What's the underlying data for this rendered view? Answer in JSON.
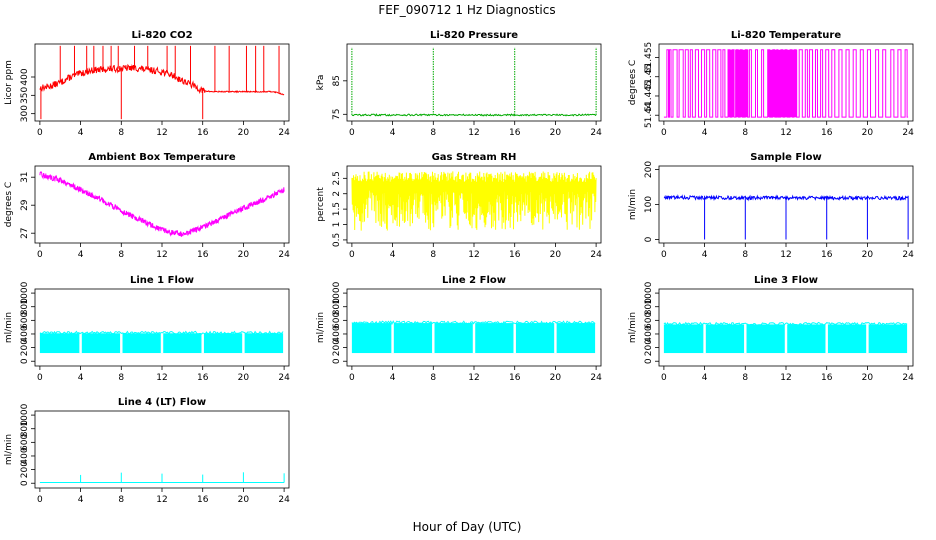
{
  "figure": {
    "title": "FEF_090712  1 Hz Diagnostics",
    "xlabel": "Hour of Day (UTC)"
  },
  "chart_data": [
    {
      "type": "line",
      "title": "Li-820 CO2",
      "xlabel": "",
      "ylabel": "Licor ppm",
      "color": "#ff0000",
      "xlim": [
        0,
        24
      ],
      "ylim": [
        280,
        490
      ],
      "xticks": [
        0,
        4,
        8,
        12,
        16,
        20,
        24
      ],
      "yticks": [
        300,
        350,
        400
      ],
      "x": [
        0,
        0.5,
        1,
        2,
        3,
        4,
        5,
        6,
        7,
        8,
        9,
        10,
        11,
        12,
        13,
        14,
        15,
        16,
        17,
        18,
        19,
        20,
        21,
        22,
        23,
        24
      ],
      "y": [
        370,
        372,
        375,
        385,
        400,
        410,
        418,
        420,
        422,
        423,
        425,
        422,
        418,
        415,
        405,
        390,
        378,
        362,
        360,
        360,
        360,
        360,
        360,
        360,
        360,
        352
      ],
      "spikes_up": [
        2,
        3.4,
        4.6,
        5.3,
        6.2,
        7.0,
        7.7,
        9.3,
        10.6,
        12.5,
        13.3,
        14.8,
        17.2,
        18.6,
        20.3,
        21.2,
        22.0,
        23.5
      ],
      "spikes_down": [
        0.1,
        8.0,
        16.0
      ]
    },
    {
      "type": "line",
      "title": "Li-820 Pressure",
      "xlabel": "",
      "ylabel": "kPa",
      "color": "#00aa00",
      "xlim": [
        0,
        24
      ],
      "ylim": [
        73,
        96
      ],
      "xticks": [
        0,
        4,
        8,
        12,
        16,
        20,
        24
      ],
      "yticks": [
        75,
        85
      ],
      "x": [
        0,
        24
      ],
      "y": [
        74.8,
        74.8
      ],
      "spikes_up": [
        0,
        8,
        16,
        24
      ]
    },
    {
      "type": "line",
      "title": "Li-820 Temperature",
      "xlabel": "",
      "ylabel": "degrees C",
      "color": "#ff00ff",
      "xlim": [
        0,
        24
      ],
      "ylim": [
        51.4385,
        51.4585
      ],
      "xticks": [
        0,
        4,
        8,
        12,
        16,
        20,
        24
      ],
      "yticks": [
        51.44,
        51.445,
        51.45,
        51.455
      ],
      "levels": [
        51.4395,
        51.457
      ],
      "switch_times": [
        0.3,
        0.45,
        0.55,
        0.7,
        0.9,
        1.3,
        1.5,
        1.9,
        2.1,
        2.4,
        2.6,
        2.8,
        3.1,
        3.4,
        3.7,
        4.0,
        4.2,
        4.5,
        4.8,
        5.1,
        5.3,
        5.6,
        5.8,
        6.0,
        6.3,
        6.5,
        6.7,
        6.9,
        7.1,
        7.3,
        7.5,
        7.7,
        8.0,
        8.2,
        8.4,
        8.6,
        9.0,
        9.2,
        9.6,
        9.8,
        10.2,
        10.4,
        10.7,
        10.9,
        11.1,
        11.2,
        11.5,
        11.7,
        11.9,
        12.1,
        12.4,
        12.6,
        12.8,
        13.0,
        13.3,
        13.6,
        13.9,
        14.1,
        14.3,
        14.6,
        14.9,
        15.1,
        15.4,
        15.6,
        15.9,
        16.2,
        16.5,
        16.8,
        17.2,
        17.5,
        17.9,
        18.2,
        18.6,
        18.9,
        19.3,
        19.6,
        20.0,
        20.3,
        20.8,
        21.1,
        21.5,
        21.8,
        22.3,
        22.6,
        23.0,
        23.3,
        23.7,
        23.9
      ]
    },
    {
      "type": "line",
      "title": "Ambient Box Temperature",
      "xlabel": "",
      "ylabel": "degrees C",
      "color": "#ff00ff",
      "xlim": [
        0,
        24
      ],
      "ylim": [
        26.3,
        31.8
      ],
      "xticks": [
        0,
        4,
        8,
        12,
        16,
        20,
        24
      ],
      "yticks": [
        27,
        29,
        31
      ],
      "x": [
        0,
        2,
        4,
        6,
        8,
        10,
        12,
        14,
        16,
        18,
        20,
        22,
        24
      ],
      "y": [
        31.2,
        30.8,
        30.1,
        29.4,
        28.6,
        27.9,
        27.2,
        26.9,
        27.4,
        28.1,
        28.8,
        29.4,
        30.1
      ],
      "noise_band": 0.4
    },
    {
      "type": "line",
      "title": "Gas Stream RH",
      "xlabel": "",
      "ylabel": "percent",
      "color": "#ffff00",
      "xlim": [
        0,
        24
      ],
      "ylim": [
        0.4,
        2.9
      ],
      "xticks": [
        0,
        4,
        8,
        12,
        16,
        20,
        24
      ],
      "yticks": [
        0.5,
        1.0,
        1.5,
        2.0,
        2.5
      ],
      "upper": 2.55,
      "lower": 0.8
    },
    {
      "type": "line",
      "title": "Sample Flow",
      "xlabel": "",
      "ylabel": "ml/min",
      "color": "#0000ff",
      "xlim": [
        0,
        24
      ],
      "ylim": [
        -10,
        210
      ],
      "xticks": [
        0,
        4,
        8,
        12,
        16,
        20,
        24
      ],
      "yticks": [
        0,
        100,
        200
      ],
      "x": [
        0,
        24
      ],
      "y": [
        120,
        118
      ],
      "spikes_down": [
        4,
        8,
        12,
        16,
        20,
        24
      ]
    },
    {
      "type": "line",
      "title": "Line 1 Flow",
      "xlabel": "",
      "ylabel": "ml/min",
      "color": "#00ffff",
      "xlim": [
        0,
        24
      ],
      "ylim": [
        -70,
        1060
      ],
      "xticks": [
        0,
        4,
        8,
        12,
        16,
        20,
        24
      ],
      "yticks": [
        0,
        200,
        400,
        600,
        800,
        1000
      ],
      "upper": 410,
      "lower": 120,
      "gaps": [
        4,
        8,
        12,
        16,
        20
      ]
    },
    {
      "type": "line",
      "title": "Line 2 Flow",
      "xlabel": "",
      "ylabel": "ml/min",
      "color": "#00ffff",
      "xlim": [
        0,
        24
      ],
      "ylim": [
        -70,
        1060
      ],
      "xticks": [
        0,
        4,
        8,
        12,
        16,
        20,
        24
      ],
      "yticks": [
        0,
        200,
        400,
        600,
        800,
        1000
      ],
      "upper": 560,
      "lower": 120,
      "gaps": [
        4,
        8,
        12,
        16,
        20
      ]
    },
    {
      "type": "line",
      "title": "Line 3 Flow",
      "xlabel": "",
      "ylabel": "ml/min",
      "color": "#00ffff",
      "xlim": [
        0,
        24
      ],
      "ylim": [
        -70,
        1060
      ],
      "xticks": [
        0,
        4,
        8,
        12,
        16,
        20,
        24
      ],
      "yticks": [
        0,
        200,
        400,
        600,
        800,
        1000
      ],
      "upper": 540,
      "lower": 120,
      "gaps": [
        4,
        8,
        12,
        16,
        20
      ]
    },
    {
      "type": "line",
      "title": "Line 4 (LT) Flow",
      "xlabel": "",
      "ylabel": "ml/min",
      "color": "#00ffff",
      "xlim": [
        0,
        24
      ],
      "ylim": [
        -70,
        1060
      ],
      "xticks": [
        0,
        4,
        8,
        12,
        16,
        20,
        24
      ],
      "yticks": [
        0,
        200,
        400,
        600,
        800,
        1000
      ],
      "x": [
        0,
        24
      ],
      "y": [
        10,
        10
      ],
      "spikes_up": [
        4,
        8,
        12,
        16,
        20,
        24
      ],
      "spike_height": 160
    }
  ]
}
